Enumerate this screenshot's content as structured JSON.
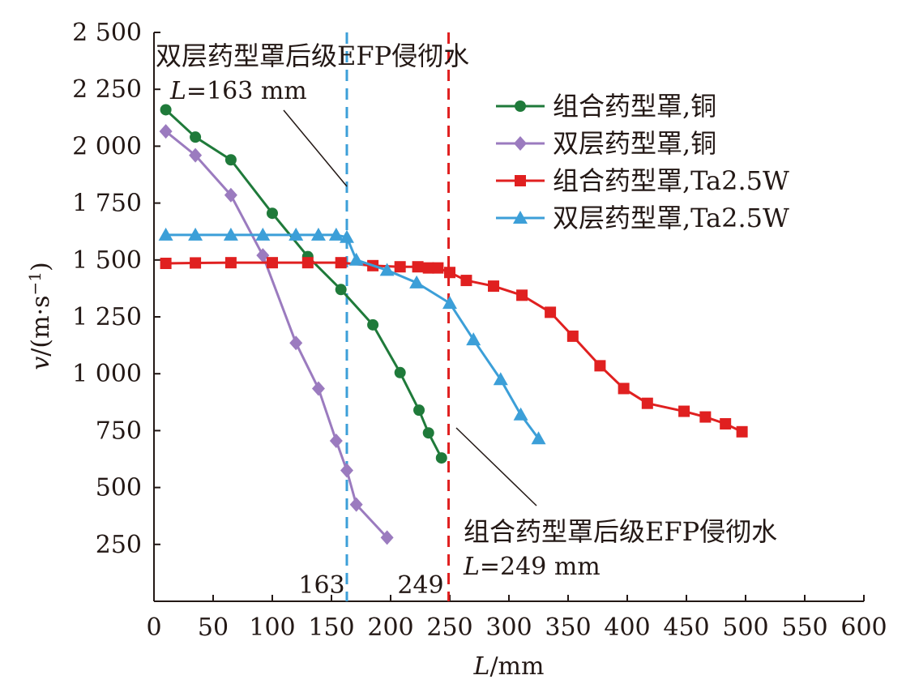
{
  "chart_data": {
    "type": "line",
    "xlabel": {
      "var": "L",
      "unit": "/mm"
    },
    "ylabel": {
      "var": "v",
      "unit": "/(m·s",
      "sup": "−1",
      "close": ")"
    },
    "xlim": [
      0,
      600
    ],
    "ylim": [
      0,
      2500
    ],
    "xticks": [
      0,
      50,
      100,
      150,
      200,
      250,
      300,
      350,
      400,
      450,
      500,
      550,
      600
    ],
    "yticks": [
      250,
      500,
      750,
      1000,
      1250,
      1500,
      1750,
      2000,
      2250,
      2500
    ],
    "ytick_labels": [
      "250",
      "500",
      "750",
      "1 000",
      "1 250",
      "1 500",
      "1 750",
      "2 000",
      "2 250",
      "2 500"
    ],
    "grid": false,
    "legend_position": "top-right",
    "series": [
      {
        "name": "组合药型罩,铜",
        "color": "#1f7a3a",
        "marker": "circle",
        "x": [
          10,
          35,
          65,
          100,
          130,
          158,
          185,
          208,
          224,
          232,
          243
        ],
        "y": [
          2160,
          2040,
          1940,
          1705,
          1515,
          1370,
          1215,
          1005,
          840,
          740,
          630
        ]
      },
      {
        "name": "双层药型罩,铜",
        "color": "#9b7bbf",
        "marker": "diamond",
        "x": [
          10,
          35,
          65,
          92,
          120,
          139,
          154,
          163,
          171,
          197
        ],
        "y": [
          2065,
          1960,
          1785,
          1520,
          1135,
          935,
          705,
          575,
          425,
          280
        ]
      },
      {
        "name": "组合药型罩,Ta2.5W",
        "color": "#e02020",
        "marker": "square",
        "x": [
          10,
          35,
          65,
          100,
          130,
          158,
          185,
          208,
          223,
          232,
          240,
          250,
          264,
          287,
          311,
          335,
          354,
          377,
          397,
          417,
          448,
          466,
          483,
          497
        ],
        "y": [
          1485,
          1487,
          1488,
          1488,
          1488,
          1488,
          1475,
          1470,
          1470,
          1465,
          1465,
          1445,
          1410,
          1385,
          1345,
          1270,
          1165,
          1035,
          935,
          870,
          835,
          810,
          780,
          745
        ]
      },
      {
        "name": "双层药型罩,Ta2.5W",
        "color": "#3c9fd8",
        "marker": "triangle",
        "x": [
          10,
          35,
          65,
          92,
          120,
          139,
          154,
          163,
          171,
          197,
          222,
          250,
          270,
          293,
          310,
          325
        ],
        "y": [
          1610,
          1610,
          1610,
          1610,
          1610,
          1610,
          1610,
          1600,
          1500,
          1455,
          1400,
          1310,
          1150,
          975,
          820,
          715
        ]
      }
    ],
    "vlines": [
      {
        "x": 163,
        "label": "163",
        "color": "#3c9fd8"
      },
      {
        "x": 249,
        "label": "249",
        "color": "#e02020"
      }
    ],
    "annotations": [
      {
        "title": "双层药型罩后级EFP侵彻水",
        "l_var": "L",
        "l_value": "=163 mm"
      },
      {
        "title": "组合药型罩后级EFP侵彻水",
        "l_var": "L",
        "l_value": "=249 mm"
      }
    ]
  }
}
